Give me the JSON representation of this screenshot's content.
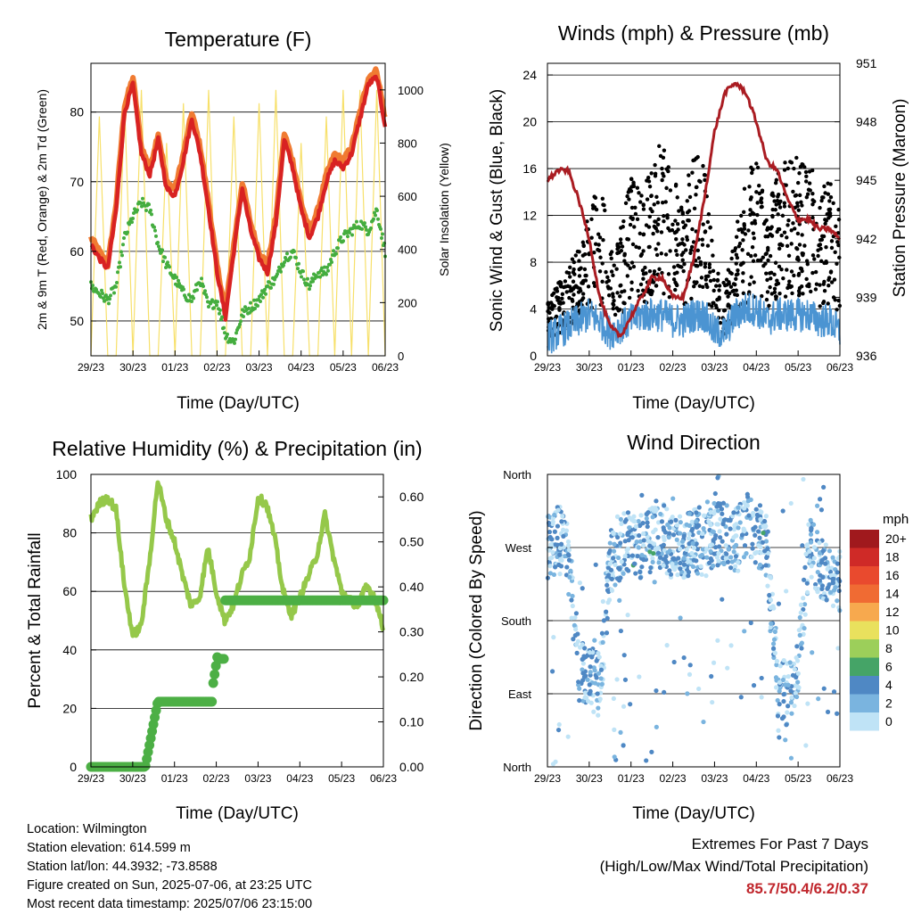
{
  "colors": {
    "temp_red": "#d82222",
    "temp_orange": "#f07b32",
    "dewpoint_green": "#44ad3f",
    "insolation_yellow": "#f7e06a",
    "wind_blue": "#4b94d2",
    "gust_black": "#000000",
    "pressure_maroon": "#aa1c22",
    "rh_lightgreen": "#95c84a",
    "precip_green": "#4caf45",
    "extremes_red": "#c0262c"
  },
  "x_ticks": [
    "29/23",
    "30/23",
    "01/23",
    "02/23",
    "03/23",
    "04/23",
    "05/23",
    "06/23"
  ],
  "chart_data": [
    {
      "id": "temperature",
      "type": "line",
      "title": "Temperature (F)",
      "xlabel": "Time (Day/UTC)",
      "ylabel_left": "2m & 9m T (Red, Orange) & 2m Td (Green)",
      "ylabel_right": "Solar Insolation (Yellow)",
      "x": [
        0,
        0.2,
        0.4,
        0.6,
        0.8,
        1.0,
        1.2,
        1.4,
        1.6,
        1.8,
        2.0,
        2.2,
        2.4,
        2.6,
        2.8,
        3.0,
        3.2,
        3.4,
        3.6,
        3.8,
        4.0,
        4.2,
        4.4,
        4.6,
        4.8,
        5.0,
        5.2,
        5.4,
        5.6,
        5.8,
        6.0,
        6.2,
        6.4,
        6.6,
        6.8,
        7.0
      ],
      "ylim_left": [
        45,
        87
      ],
      "yticks_left": [
        50,
        60,
        70,
        80
      ],
      "ylim_right": [
        0,
        1100
      ],
      "yticks_right": [
        0,
        200,
        400,
        600,
        800,
        1000
      ],
      "series": [
        {
          "name": "2m T",
          "values": [
            61,
            59,
            57.5,
            66,
            80,
            84,
            74,
            71,
            76,
            69,
            68,
            73,
            79,
            74,
            66,
            57,
            50.5,
            60,
            69,
            63,
            59,
            57,
            64,
            76,
            72,
            66,
            62,
            65,
            70,
            73,
            72,
            74,
            79,
            84,
            85,
            78
          ]
        },
        {
          "name": "9m T",
          "values": [
            62,
            60,
            58,
            67,
            81,
            85,
            75,
            72,
            77,
            70,
            69,
            74,
            80,
            75,
            67,
            58,
            51.5,
            61,
            70,
            64,
            60,
            58,
            65,
            77,
            73,
            67,
            63,
            66,
            71,
            74,
            73,
            75,
            80,
            85,
            86,
            79
          ]
        },
        {
          "name": "2m Td",
          "values": [
            55,
            54,
            53,
            55,
            62,
            65,
            67,
            66,
            61,
            58,
            56,
            54,
            53,
            56,
            52,
            53,
            48,
            47,
            51,
            52,
            53,
            55,
            56,
            59,
            60,
            57,
            55,
            57,
            57,
            60,
            62,
            63,
            64,
            63,
            66,
            60
          ]
        },
        {
          "name": "Solar Insolation",
          "values": [
            0,
            900,
            0,
            0,
            950,
            0,
            1000,
            0,
            0,
            800,
            0,
            950,
            0,
            0,
            1000,
            0,
            0,
            900,
            0,
            0,
            950,
            0,
            1000,
            0,
            0,
            800,
            0,
            0,
            900,
            0,
            1000,
            0,
            1000,
            0,
            1000,
            0
          ]
        }
      ]
    },
    {
      "id": "winds",
      "type": "scatter",
      "title": "Winds (mph) & Pressure (mb)",
      "xlabel": "Time (Day/UTC)",
      "ylabel_left": "Sonic Wind & Gust (Blue, Black)",
      "ylabel_right": "Station Pressure (Maroon)",
      "ylim_left": [
        0,
        25
      ],
      "yticks_left": [
        0,
        4,
        8,
        12,
        16,
        20,
        24
      ],
      "ylim_right": [
        936,
        951
      ],
      "yticks_right": [
        936,
        939,
        942,
        945,
        948,
        951
      ],
      "x": [
        0,
        0.25,
        0.5,
        0.75,
        1.0,
        1.25,
        1.5,
        1.75,
        2.0,
        2.25,
        2.5,
        2.75,
        3.0,
        3.25,
        3.5,
        3.75,
        4.0,
        4.25,
        4.5,
        4.75,
        5.0,
        5.25,
        5.5,
        5.75,
        6.0,
        6.25,
        6.5,
        6.75,
        7.0
      ],
      "series": [
        {
          "name": "Sonic Wind",
          "values": [
            1.5,
            2,
            2.5,
            3,
            3.5,
            3,
            2,
            2.5,
            3,
            3.5,
            3.5,
            3.5,
            3,
            3,
            3.5,
            3.5,
            2,
            2,
            3.5,
            4,
            4,
            3,
            3.5,
            3.5,
            3.5,
            3.5,
            3,
            3,
            2
          ]
        },
        {
          "name": "Gust",
          "values": [
            3,
            4,
            5,
            6,
            8,
            10,
            6,
            7,
            10,
            9,
            11,
            12,
            10,
            9,
            11,
            11,
            5,
            4,
            7,
            10,
            11,
            8,
            10,
            11,
            11,
            11,
            9,
            10,
            8
          ]
        },
        {
          "name": "Station Pressure",
          "values": [
            945,
            945.5,
            945.5,
            944,
            942,
            939,
            937.5,
            937,
            938,
            939,
            940,
            940,
            939,
            939,
            941,
            944,
            947.5,
            949.5,
            950,
            949.5,
            948,
            946,
            945.5,
            944,
            943,
            943,
            942.5,
            942.5,
            942
          ]
        }
      ]
    },
    {
      "id": "humidity",
      "type": "line",
      "title": "Relative Humidity (%) & Precipitation (in)",
      "xlabel": "Time (Day/UTC)",
      "ylabel_left": "Percent & Total Rainfall",
      "ylim_left": [
        0,
        100
      ],
      "yticks_left": [
        0,
        20,
        40,
        60,
        80,
        100
      ],
      "ylim_right": [
        0,
        0.65
      ],
      "yticks_right": [
        "0.00",
        "0.10",
        "0.20",
        "0.30",
        "0.40",
        "0.50",
        "0.60"
      ],
      "x": [
        0,
        0.2,
        0.4,
        0.6,
        0.8,
        1.0,
        1.2,
        1.4,
        1.6,
        1.8,
        2.0,
        2.2,
        2.4,
        2.6,
        2.8,
        3.0,
        3.2,
        3.4,
        3.6,
        3.8,
        4.0,
        4.2,
        4.4,
        4.6,
        4.8,
        5.0,
        5.2,
        5.4,
        5.6,
        5.8,
        6.0,
        6.2,
        6.4,
        6.6,
        6.8,
        7.0
      ],
      "series": [
        {
          "name": "Relative Humidity",
          "values": [
            85,
            90,
            92,
            88,
            62,
            45,
            48,
            70,
            98,
            85,
            77,
            65,
            55,
            58,
            75,
            60,
            50,
            55,
            65,
            72,
            92,
            90,
            78,
            60,
            52,
            58,
            65,
            72,
            86,
            72,
            60,
            57,
            55,
            62,
            58,
            47
          ]
        },
        {
          "name": "Total Precipitation",
          "values": [
            0,
            0,
            0,
            0,
            0,
            0,
            0,
            0.02,
            0.145,
            0.145,
            0.145,
            0.145,
            0.145,
            0.145,
            0.145,
            0.24,
            0.37,
            0.37,
            0.37,
            0.37,
            0.37,
            0.37,
            0.37,
            0.37,
            0.37,
            0.37,
            0.37,
            0.37,
            0.37,
            0.37,
            0.37,
            0.37,
            0.37,
            0.37,
            0.37,
            0.37
          ]
        }
      ]
    },
    {
      "id": "direction",
      "type": "scatter",
      "title": "Wind Direction",
      "xlabel": "Time (Day/UTC)",
      "ylabel": "Direction (Colored By Speed)",
      "yticks": [
        "North",
        "East",
        "South",
        "West",
        "North"
      ],
      "colorbar_title": "mph",
      "colorbar_labels": [
        "20+",
        "18",
        "16",
        "14",
        "12",
        "10",
        "8",
        "6",
        "4",
        "2",
        "0"
      ],
      "colorbar_colors": [
        "#a0191d",
        "#cf2a27",
        "#e94a2e",
        "#f06b33",
        "#f7a94e",
        "#e9e15d",
        "#9ccf5a",
        "#45a467",
        "#4f88c4",
        "#7ab4df",
        "#bfe3f6"
      ],
      "x": [
        0,
        0.25,
        0.5,
        0.75,
        1.0,
        1.25,
        1.5,
        1.75,
        2.0,
        2.25,
        2.5,
        2.75,
        3.0,
        3.25,
        3.5,
        3.75,
        4.0,
        4.25,
        4.5,
        4.75,
        5.0,
        5.25,
        5.5,
        5.75,
        6.0,
        6.25,
        6.5,
        6.75,
        7.0
      ],
      "values": [
        270,
        280,
        260,
        120,
        110,
        100,
        250,
        270,
        280,
        270,
        280,
        285,
        270,
        265,
        280,
        270,
        285,
        290,
        280,
        300,
        290,
        270,
        100,
        90,
        120,
        270,
        250,
        240,
        230
      ]
    }
  ],
  "info": {
    "location": "Location: Wilmington",
    "elevation": "Station elevation: 614.599 m",
    "latlon": "Station lat/lon: 44.3932; -73.8588",
    "created": "Figure created on Sun, 2025-07-06, at 23:25 UTC",
    "recent": "Most recent data timestamp: 2025/07/06 23:15:00"
  },
  "extremes": {
    "title": "Extremes For Past 7 Days",
    "subtitle": "(High/Low/Max Wind/Total Precipitation)",
    "values": "85.7/50.4/6.2/0.37"
  }
}
